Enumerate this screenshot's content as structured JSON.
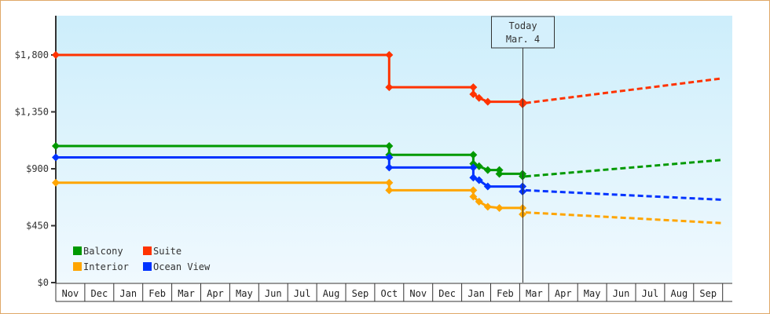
{
  "chart_data": {
    "type": "line",
    "title": "",
    "xlabel": "",
    "ylabel": "",
    "ylim": [
      0,
      2100
    ],
    "y_ticks": [
      {
        "value": 0,
        "label": "$0"
      },
      {
        "value": 450,
        "label": "$450"
      },
      {
        "value": 900,
        "label": "$900"
      },
      {
        "value": 1350,
        "label": "$1,350"
      },
      {
        "value": 1800,
        "label": "$1,800"
      }
    ],
    "x_ticks": [
      "Nov",
      "Dec",
      "Jan",
      "Feb",
      "Mar",
      "Apr",
      "May",
      "Jun",
      "Jul",
      "Aug",
      "Sep",
      "Oct",
      "Nov",
      "Dec",
      "Jan",
      "Feb",
      "Mar",
      "Apr",
      "May",
      "Jun",
      "Jul",
      "Aug",
      "Sep"
    ],
    "grid": false,
    "legend_position": "bottom-left inside",
    "annotation": {
      "line1": "Today",
      "line2": "Mar. 4",
      "x_month_index": 16.1
    },
    "series": [
      {
        "name": "Suite",
        "color": "#ff3300",
        "history": [
          [
            0,
            1800
          ],
          [
            11.5,
            1800
          ],
          [
            11.5,
            1545
          ],
          [
            14.4,
            1545
          ],
          [
            14.4,
            1490
          ],
          [
            14.6,
            1460
          ],
          [
            14.9,
            1430
          ],
          [
            15.3,
            1430
          ],
          [
            16.1,
            1430
          ],
          [
            16.1,
            1410
          ]
        ],
        "projection": [
          [
            16.2,
            1420
          ],
          [
            23.0,
            1615
          ]
        ]
      },
      {
        "name": "Balcony",
        "color": "#009900",
        "history": [
          [
            0,
            1080
          ],
          [
            11.5,
            1080
          ],
          [
            11.5,
            1010
          ],
          [
            14.4,
            1010
          ],
          [
            14.4,
            940
          ],
          [
            14.6,
            920
          ],
          [
            14.9,
            890
          ],
          [
            15.3,
            890
          ],
          [
            15.3,
            860
          ],
          [
            16.1,
            860
          ],
          [
            16.1,
            840
          ]
        ],
        "projection": [
          [
            16.2,
            840
          ],
          [
            23.0,
            970
          ]
        ]
      },
      {
        "name": "Ocean View",
        "color": "#0033ff",
        "history": [
          [
            0,
            990
          ],
          [
            11.5,
            990
          ],
          [
            11.5,
            910
          ],
          [
            14.4,
            910
          ],
          [
            14.4,
            830
          ],
          [
            14.6,
            810
          ],
          [
            14.9,
            760
          ],
          [
            15.3,
            760
          ],
          [
            16.1,
            760
          ],
          [
            16.1,
            720
          ]
        ],
        "projection": [
          [
            16.2,
            730
          ],
          [
            23.0,
            655
          ]
        ]
      },
      {
        "name": "Interior",
        "color": "#ffa500",
        "history": [
          [
            0,
            790
          ],
          [
            11.5,
            790
          ],
          [
            11.5,
            730
          ],
          [
            14.4,
            730
          ],
          [
            14.4,
            680
          ],
          [
            14.6,
            640
          ],
          [
            14.9,
            600
          ],
          [
            15.3,
            590
          ],
          [
            16.1,
            590
          ],
          [
            16.1,
            540
          ]
        ],
        "projection": [
          [
            16.2,
            555
          ],
          [
            23.0,
            470
          ]
        ]
      }
    ]
  },
  "legend": [
    {
      "label": "Balcony",
      "color": "#009900"
    },
    {
      "label": "Suite",
      "color": "#ff3300"
    },
    {
      "label": "Interior",
      "color": "#ffa500"
    },
    {
      "label": "Ocean View",
      "color": "#0033ff"
    }
  ],
  "today_box": {
    "line1": "Today",
    "line2": "Mar. 4"
  }
}
